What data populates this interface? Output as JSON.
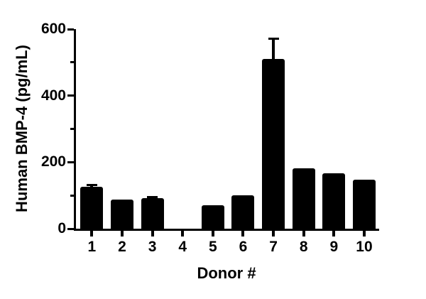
{
  "chart_data": {
    "type": "bar",
    "title": "",
    "xlabel": "Donor #",
    "ylabel": "Human BMP-4 (pg/mL)",
    "categories": [
      "1",
      "2",
      "3",
      "4",
      "5",
      "6",
      "7",
      "8",
      "9",
      "10"
    ],
    "values": [
      125,
      87,
      91,
      0,
      71,
      101,
      510,
      181,
      167,
      148
    ],
    "errors_plus": [
      9,
      0,
      7,
      0,
      0,
      0,
      64,
      0,
      0,
      0
    ],
    "ylim": [
      0,
      600
    ],
    "ytick_major": [
      0,
      200,
      400,
      600
    ],
    "ytick_minor": [
      100,
      300,
      500
    ],
    "grid": false,
    "legend": null,
    "bar_color": "#000000",
    "background": "#ffffff"
  }
}
